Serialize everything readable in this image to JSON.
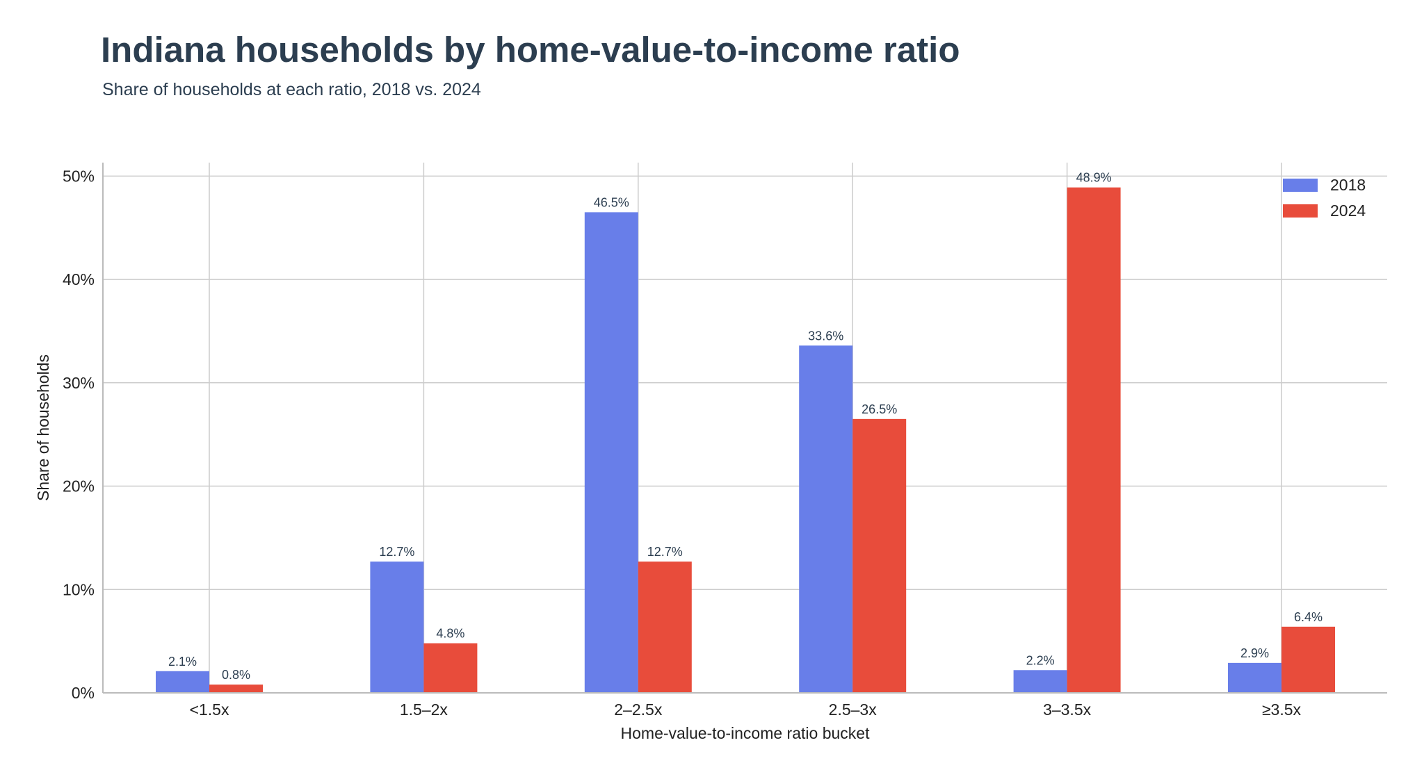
{
  "chart_data": {
    "type": "bar",
    "title": "Indiana households by home-value-to-income ratio",
    "subtitle": "Share of households at each ratio, 2018 vs. 2024",
    "xlabel": "Home-value-to-income ratio bucket",
    "ylabel": "Share of households",
    "categories": [
      "<1.5x",
      "1.5–2x",
      "2–2.5x",
      "2.5–3x",
      "3–3.5x",
      "≥3.5x"
    ],
    "series": [
      {
        "name": "2018",
        "color": "#687ee9",
        "values": [
          2.1,
          12.7,
          46.5,
          33.6,
          2.2,
          2.9
        ],
        "labels": [
          "2.1%",
          "12.7%",
          "46.5%",
          "33.6%",
          "2.2%",
          "2.9%"
        ]
      },
      {
        "name": "2024",
        "color": "#e84c3b",
        "values": [
          0.8,
          4.8,
          12.7,
          26.5,
          48.9,
          6.4
        ],
        "labels": [
          "0.8%",
          "4.8%",
          "12.7%",
          "26.5%",
          "48.9%",
          "6.4%"
        ]
      }
    ],
    "ylim": [
      0,
      51.3
    ],
    "yticks": [
      0,
      10,
      20,
      30,
      40,
      50
    ],
    "ytick_labels": [
      "0%",
      "10%",
      "20%",
      "30%",
      "40%",
      "50%"
    ],
    "grid": true,
    "legend_position": "top-right"
  }
}
